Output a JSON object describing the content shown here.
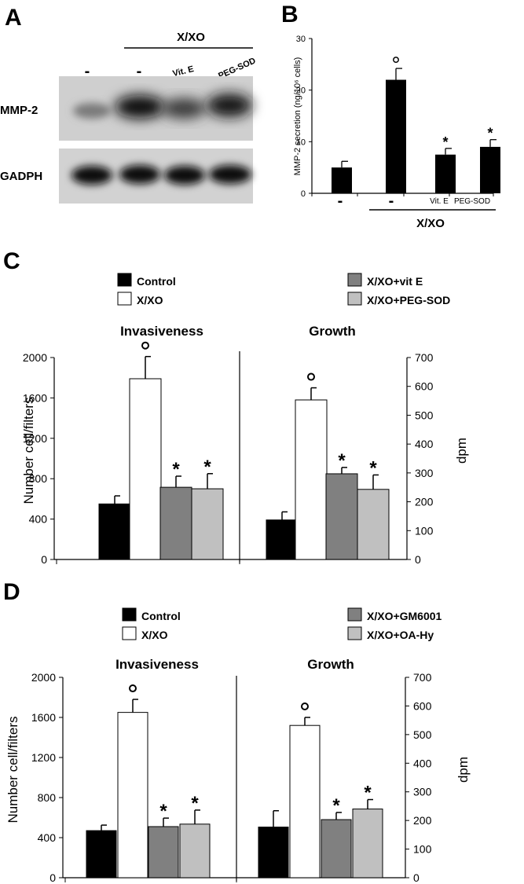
{
  "panels": {
    "A": {
      "letter": "A",
      "group_label": "X/XO",
      "lane_labels": [
        "-",
        "-",
        "Vit. E",
        "PEG-SOD"
      ],
      "row_labels": [
        "MMP-2",
        "GADPH"
      ]
    },
    "B": {
      "letter": "B"
    },
    "C": {
      "letter": "C"
    },
    "D": {
      "letter": "D"
    }
  },
  "chart_data": [
    {
      "panel": "B",
      "type": "bar",
      "categories": [
        "-",
        "-",
        "Vit. E",
        "PEG-SOD"
      ],
      "values": [
        5,
        22,
        7.5,
        9
      ],
      "errors": [
        1.2,
        2.2,
        1.2,
        1.4
      ],
      "markers": [
        "",
        "°",
        "*",
        "*"
      ],
      "ylabel": "MMP-2 secretion (ng/10⁶ cells)",
      "xlabel": "X/XO",
      "ylim": [
        0,
        30
      ],
      "yticks": [
        0,
        10,
        20,
        30
      ],
      "bar_color": "#000000"
    },
    {
      "panel": "C",
      "type": "bar",
      "legend": [
        "Control",
        "X/XO",
        "X/XO+vit E",
        "X/XO+PEG-SOD"
      ],
      "colors": [
        "#000000",
        "#ffffff",
        "#808080",
        "#c0c0c0"
      ],
      "ylabel_left": "Number cell/filters",
      "ylabel_right": "dpm",
      "ylim_left": [
        0,
        2000
      ],
      "ylim_right": [
        0,
        700
      ],
      "yticks_left": [
        0,
        400,
        800,
        1200,
        1600,
        2000
      ],
      "yticks_right": [
        0,
        100,
        200,
        300,
        400,
        500,
        600,
        700
      ],
      "groups": [
        {
          "title": "Invasiveness",
          "axis": "left",
          "values": [
            550,
            1790,
            715,
            700
          ],
          "errors": [
            80,
            220,
            110,
            150
          ],
          "markers": [
            "",
            "°",
            "*",
            "*"
          ]
        },
        {
          "title": "Growth",
          "axis": "right",
          "values": [
            137,
            553,
            297,
            243
          ],
          "errors": [
            28,
            42,
            22,
            50
          ],
          "markers": [
            "",
            "°",
            "*",
            "*"
          ]
        }
      ]
    },
    {
      "panel": "D",
      "type": "bar",
      "legend": [
        "Control",
        "X/XO",
        "X/XO+GM6001",
        "X/XO+OA-Hy"
      ],
      "colors": [
        "#000000",
        "#ffffff",
        "#808080",
        "#c0c0c0"
      ],
      "ylabel_left": "Number cell/filters",
      "ylabel_right": "dpm",
      "ylim_left": [
        0,
        2000
      ],
      "ylim_right": [
        0,
        700
      ],
      "yticks_left": [
        0,
        400,
        800,
        1200,
        1600,
        2000
      ],
      "yticks_right": [
        0,
        100,
        200,
        300,
        400,
        500,
        600,
        700
      ],
      "groups": [
        {
          "title": "Invasiveness",
          "axis": "left",
          "values": [
            470,
            1650,
            510,
            535
          ],
          "errors": [
            55,
            130,
            85,
            140
          ],
          "markers": [
            "",
            "°",
            "*",
            "*"
          ]
        },
        {
          "title": "Growth",
          "axis": "right",
          "values": [
            177,
            532,
            203,
            240
          ],
          "errors": [
            57,
            28,
            25,
            33
          ],
          "markers": [
            "",
            "°",
            "*",
            "*"
          ]
        }
      ]
    }
  ]
}
